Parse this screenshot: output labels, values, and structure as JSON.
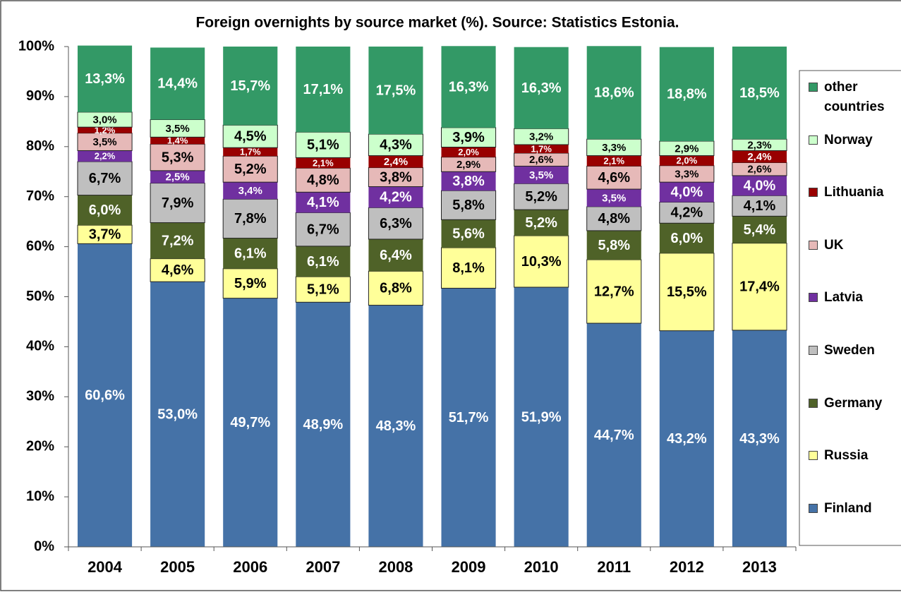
{
  "chart_data": {
    "type": "stacked_bar",
    "title": "Foreign overnights by source market (%). Source: Statistics Estonia.",
    "categories": [
      "2004",
      "2005",
      "2006",
      "2007",
      "2008",
      "2009",
      "2010",
      "2011",
      "2012",
      "2013"
    ],
    "ylim": [
      0,
      100
    ],
    "yticks": [
      {
        "value": 0,
        "label": "0%"
      },
      {
        "value": 10,
        "label": "10%"
      },
      {
        "value": 20,
        "label": "20%"
      },
      {
        "value": 30,
        "label": "30%"
      },
      {
        "value": 40,
        "label": "40%"
      },
      {
        "value": 50,
        "label": "50%"
      },
      {
        "value": 60,
        "label": "60%"
      },
      {
        "value": 70,
        "label": "70%"
      },
      {
        "value": 80,
        "label": "80%"
      },
      {
        "value": 90,
        "label": "90%"
      },
      {
        "value": 100,
        "label": "100%"
      }
    ],
    "legend": "right",
    "series": [
      {
        "name": "Finland",
        "color": "#4572a7",
        "values": [
          60.6,
          53.0,
          49.7,
          48.9,
          48.3,
          51.7,
          51.9,
          44.7,
          43.2,
          43.3
        ],
        "value_labels": [
          "60,6%",
          "53,0%",
          "49,7%",
          "48,9%",
          "48,3%",
          "51,7%",
          "51,9%",
          "44,7%",
          "43,2%",
          "43,3%"
        ]
      },
      {
        "name": "Russia",
        "color": "#ffff99",
        "values": [
          3.7,
          4.6,
          5.9,
          5.1,
          6.8,
          8.1,
          10.3,
          12.7,
          15.5,
          17.4
        ],
        "value_labels": [
          "3,7%",
          "4,6%",
          "5,9%",
          "5,1%",
          "6,8%",
          "8,1%",
          "10,3%",
          "12,7%",
          "15,5%",
          "17,4%"
        ]
      },
      {
        "name": "Germany",
        "color": "#4f6228",
        "values": [
          6.0,
          7.2,
          6.1,
          6.1,
          6.4,
          5.6,
          5.2,
          5.8,
          6.0,
          5.4
        ],
        "value_labels": [
          "6,0%",
          "7,2%",
          "6,1%",
          "6,1%",
          "6,4%",
          "5,6%",
          "5,2%",
          "5,8%",
          "6,0%",
          "5,4%"
        ]
      },
      {
        "name": "Sweden",
        "color": "#bfbfbf",
        "values": [
          6.7,
          7.9,
          7.8,
          6.7,
          6.3,
          5.8,
          5.2,
          4.8,
          4.2,
          4.1
        ],
        "value_labels": [
          "6,7%",
          "7,9%",
          "7,8%",
          "6,7%",
          "6,3%",
          "5,8%",
          "5,2%",
          "4,8%",
          "4,2%",
          "4,1%"
        ]
      },
      {
        "name": "Latvia",
        "color": "#7030a0",
        "values": [
          2.2,
          2.5,
          3.4,
          4.1,
          4.2,
          3.8,
          3.5,
          3.5,
          4.0,
          4.0
        ],
        "value_labels": [
          "2,2%",
          "2,5%",
          "3,4%",
          "4,1%",
          "4,2%",
          "3,8%",
          "3,5%",
          "3,5%",
          "4,0%",
          "4,0%"
        ]
      },
      {
        "name": "UK",
        "color": "#e6b9b8",
        "values": [
          3.5,
          5.3,
          5.2,
          4.8,
          3.8,
          2.9,
          2.6,
          4.6,
          3.3,
          2.6
        ],
        "value_labels": [
          "3,5%",
          "5,3%",
          "5,2%",
          "4,8%",
          "3,8%",
          "2,9%",
          "2,6%",
          "4,6%",
          "3,3%",
          "2,6%"
        ]
      },
      {
        "name": "Lithuania",
        "color": "#990000",
        "values": [
          1.2,
          1.4,
          1.7,
          2.1,
          2.4,
          2.0,
          1.7,
          2.1,
          2.0,
          2.4
        ],
        "value_labels": [
          "1,2%",
          "1,4%",
          "1,7%",
          "2,1%",
          "2,4%",
          "2,0%",
          "1,7%",
          "2,1%",
          "2,0%",
          "2,4%"
        ]
      },
      {
        "name": "Norway",
        "color": "#ccffcc",
        "values": [
          3.0,
          3.5,
          4.5,
          5.1,
          4.3,
          3.9,
          3.2,
          3.3,
          2.9,
          2.3
        ],
        "value_labels": [
          "3,0%",
          "3,5%",
          "4,5%",
          "5,1%",
          "4,3%",
          "3,9%",
          "3,2%",
          "3,3%",
          "2,9%",
          "2,3%"
        ]
      },
      {
        "name": "other countries",
        "color": "#339966",
        "values": [
          13.3,
          14.4,
          15.7,
          17.1,
          17.5,
          16.3,
          16.3,
          18.6,
          18.8,
          18.5
        ],
        "value_labels": [
          "13,3%",
          "14,4%",
          "15,7%",
          "17,1%",
          "17,5%",
          "16,3%",
          "16,3%",
          "18,6%",
          "18,8%",
          "18,5%"
        ]
      }
    ]
  }
}
